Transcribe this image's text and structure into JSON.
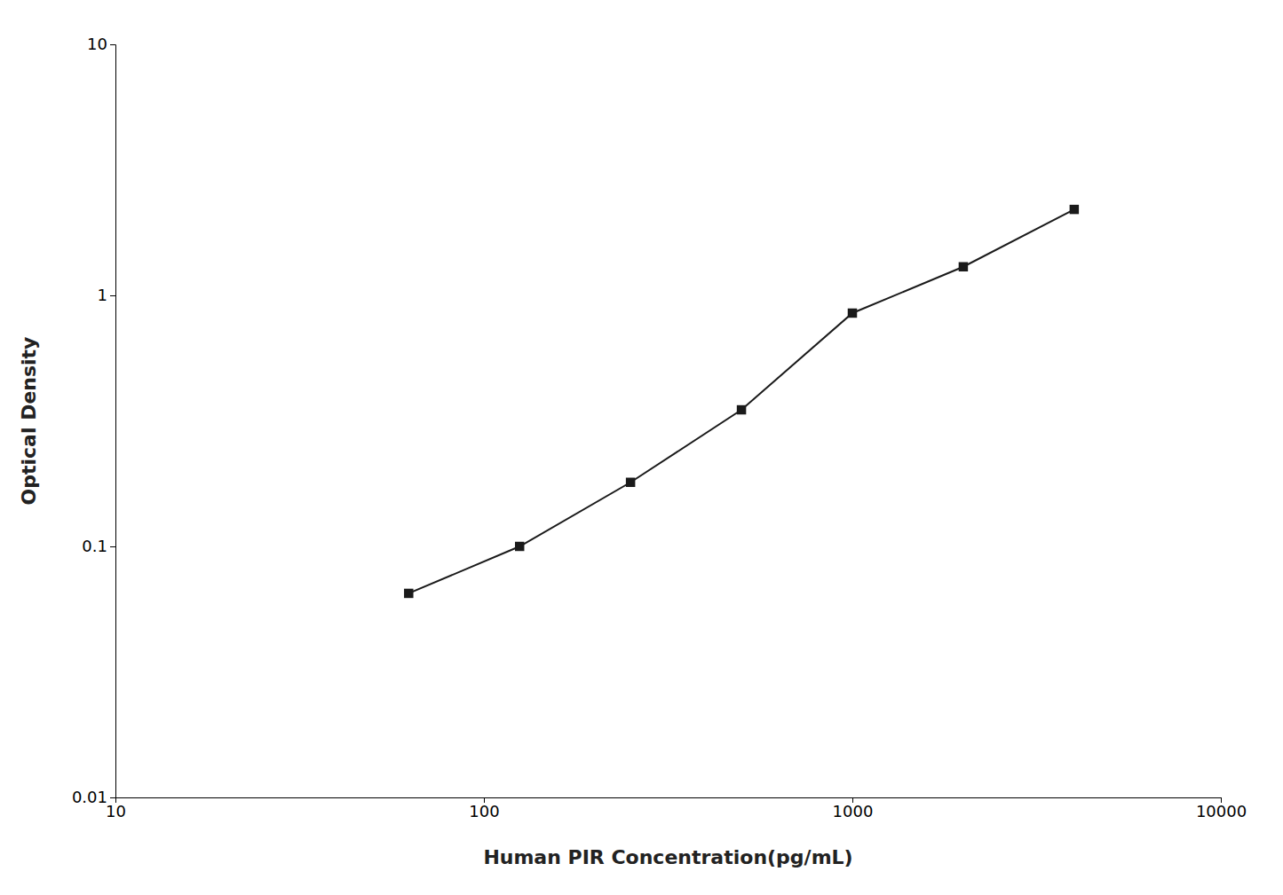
{
  "chart_data": {
    "type": "line",
    "x": [
      62.5,
      125,
      250,
      500,
      1000,
      2000,
      4000
    ],
    "values": [
      0.065,
      0.1,
      0.18,
      0.35,
      0.85,
      1.3,
      2.2
    ],
    "xlabel": "Human PIR Concentration(pg/mL)",
    "ylabel": "Optical Density",
    "xlim": [
      10,
      10000
    ],
    "ylim": [
      0.01,
      10
    ],
    "xticks": [
      10,
      100,
      1000,
      10000
    ],
    "yticks": [
      0.01,
      0.1,
      1,
      10
    ],
    "log": true,
    "grid": false,
    "color": "#1a1a1a",
    "marker": "square"
  }
}
